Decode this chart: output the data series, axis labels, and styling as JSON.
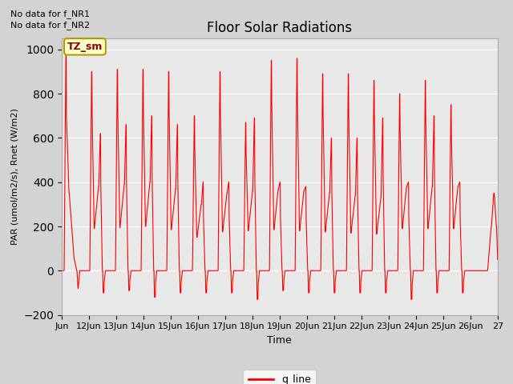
{
  "title": "Floor Solar Radiations",
  "xlabel": "Time",
  "ylabel": "PAR (umol/m2/s), Rnet (W/m2)",
  "ylim": [
    -200,
    1050
  ],
  "yticks": [
    -200,
    0,
    200,
    400,
    600,
    800,
    1000
  ],
  "bg_color": "#e8e8e8",
  "fig_bg_color": "#d3d3d3",
  "line_color": "red",
  "legend_label": "q_line",
  "text_no_data_1": "No data for f_NR1",
  "text_no_data_2": "No data for f_NR2",
  "annotation_label": "TZ_sm",
  "x_tick_labels": [
    "Jun",
    "12Jun",
    "13Jun",
    "14Jun",
    "15Jun",
    "16Jun",
    "17Jun",
    "18Jun",
    "19Jun",
    "20Jun",
    "21Jun",
    "22Jun",
    "23Jun",
    "24Jun",
    "25Jun",
    "26Jun",
    "27"
  ],
  "title_fontsize": 12,
  "axis_fontsize": 9,
  "tick_fontsize": 8
}
